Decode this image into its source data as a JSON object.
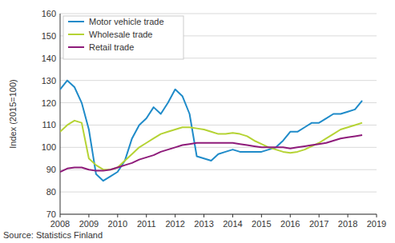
{
  "chart_data": {
    "type": "line",
    "y_label": "Index (2015=100)",
    "source": "Source: Statistics Finland",
    "x": [
      2008,
      2008.25,
      2008.5,
      2008.75,
      2009,
      2009.25,
      2009.5,
      2009.75,
      2010,
      2010.25,
      2010.5,
      2010.75,
      2011,
      2011.25,
      2011.5,
      2011.75,
      2012,
      2012.25,
      2012.5,
      2012.75,
      2013,
      2013.25,
      2013.5,
      2013.75,
      2014,
      2014.25,
      2014.5,
      2014.75,
      2015,
      2015.25,
      2015.5,
      2015.75,
      2016,
      2016.25,
      2016.5,
      2016.75,
      2017,
      2017.25,
      2017.5,
      2017.75,
      2018,
      2018.25,
      2018.5
    ],
    "series": [
      {
        "name": "Motor vehicle trade",
        "color": "#1f8bc9",
        "values": [
          126,
          130,
          127,
          120,
          108,
          88,
          85,
          87,
          89,
          94,
          104,
          110,
          113,
          118,
          115,
          120,
          126,
          123,
          115,
          96,
          95,
          94,
          97,
          98,
          99,
          98,
          98,
          98,
          98,
          99,
          100,
          103,
          107,
          107,
          109,
          111,
          111,
          113,
          115,
          115,
          116,
          117,
          121
        ]
      },
      {
        "name": "Wholesale trade",
        "color": "#b5d334",
        "values": [
          107,
          110,
          112,
          111,
          95,
          92,
          90,
          90,
          91,
          94,
          97,
          100,
          102,
          104,
          106,
          107,
          108,
          109,
          109,
          108.5,
          108,
          107,
          106,
          106,
          106.5,
          106,
          105,
          103,
          101.5,
          100,
          99,
          98,
          97.5,
          98,
          99,
          100.5,
          102,
          104,
          106,
          108,
          109,
          110,
          111
        ]
      },
      {
        "name": "Retail trade",
        "color": "#8e1b7a",
        "values": [
          89,
          90.5,
          91,
          91,
          90,
          89.5,
          89.5,
          90,
          91,
          92,
          93,
          94.5,
          95.5,
          96.5,
          98,
          99,
          100,
          101,
          101.5,
          102,
          102,
          102,
          102,
          102,
          102,
          101.5,
          101,
          100.5,
          100,
          100,
          100,
          100,
          99.5,
          100,
          100.5,
          101,
          101.5,
          102,
          103,
          104,
          104.5,
          105,
          105.5
        ]
      }
    ],
    "xlim": [
      2008,
      2019
    ],
    "xticks": [
      2008,
      2009,
      2010,
      2011,
      2012,
      2013,
      2014,
      2015,
      2016,
      2017,
      2018,
      2019
    ],
    "ylim": [
      70,
      160
    ],
    "yticks": [
      70,
      80,
      90,
      100,
      110,
      120,
      130,
      140,
      150,
      160
    ],
    "grid": true,
    "legend": "upper left"
  }
}
